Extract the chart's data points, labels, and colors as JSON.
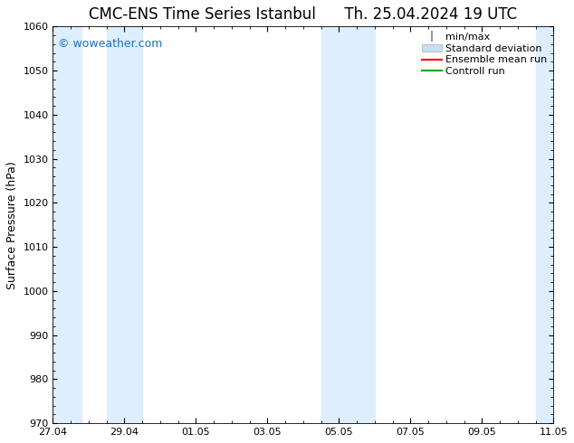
{
  "title_left": "CMC-ENS Time Series Istanbul",
  "title_right": "Th. 25.04.2024 19 UTC",
  "ylabel": "Surface Pressure (hPa)",
  "ylim": [
    970,
    1060
  ],
  "yticks": [
    970,
    980,
    990,
    1000,
    1010,
    1020,
    1030,
    1040,
    1050,
    1060
  ],
  "xlim": [
    0,
    14
  ],
  "xtick_labels": [
    "27.04",
    "29.04",
    "01.05",
    "03.05",
    "05.05",
    "07.05",
    "09.05",
    "11.05"
  ],
  "xtick_positions": [
    0,
    2,
    4,
    6,
    8,
    10,
    12,
    14
  ],
  "shaded_regions": [
    {
      "x_start": 0,
      "x_end": 0.8,
      "color": "#ddeeff"
    },
    {
      "x_start": 1.5,
      "x_end": 2.5,
      "color": "#ddeeff"
    },
    {
      "x_start": 7.5,
      "x_end": 9.0,
      "color": "#ddeeff"
    },
    {
      "x_start": 13.5,
      "x_end": 14,
      "color": "#ddeeff"
    }
  ],
  "watermark": "© woweather.com",
  "watermark_color": "#1a6fc4",
  "background_color": "#ffffff",
  "legend_labels": [
    "min/max",
    "Standard deviation",
    "Ensemble mean run",
    "Controll run"
  ],
  "minmax_color": "#999999",
  "std_color": "#c8dff0",
  "std_edge_color": "#aaaaaa",
  "ensemble_color": "#ff0000",
  "control_color": "#00aa00",
  "title_fontsize": 12,
  "axis_label_fontsize": 9,
  "tick_fontsize": 8,
  "legend_fontsize": 8,
  "fig_width": 6.34,
  "fig_height": 4.9,
  "dpi": 100
}
